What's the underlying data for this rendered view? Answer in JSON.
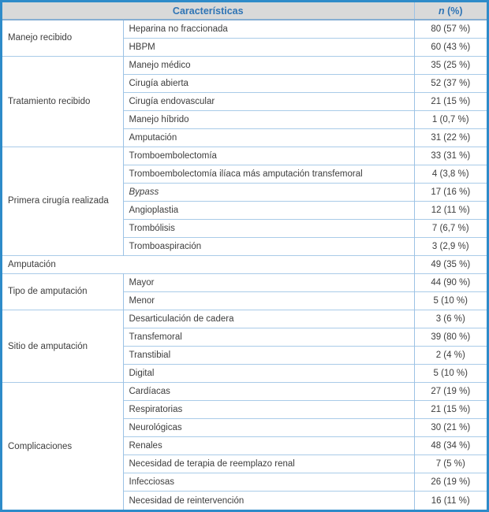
{
  "table": {
    "header": {
      "characteristics_label": "Características",
      "value_header_italic": "n",
      "value_header_rest": " (%)"
    },
    "colors": {
      "outer_border": "#2e8bc9",
      "header_bg": "#d9d9d9",
      "header_text": "#2e74b5",
      "row_divider": "#a9cbe8",
      "section_divider": "#86aed3",
      "body_text": "#3d3d3d"
    },
    "sections": [
      {
        "label": "Manejo recibido",
        "rows": [
          {
            "label": "Heparina no fraccionada",
            "value": "80 (57 %)"
          },
          {
            "label": "HBPM",
            "value": "60 (43 %)"
          }
        ]
      },
      {
        "label": "Tratamiento recibido",
        "rows": [
          {
            "label": "Manejo médico",
            "value": "35 (25 %)"
          },
          {
            "label": "Cirugía abierta",
            "value": "52 (37 %)"
          },
          {
            "label": "Cirugía endovascular",
            "value": "21 (15 %)"
          },
          {
            "label": "Manejo híbrido",
            "value": "1 (0,7 %)"
          },
          {
            "label": "Amputación",
            "value": "31 (22 %)"
          }
        ]
      },
      {
        "label": "Primera cirugía realizada",
        "rows": [
          {
            "label": "Tromboembolectomía",
            "value": "33 (31 %)"
          },
          {
            "label": "Tromboembolectomía ilíaca más amputación transfemoral",
            "value": "4 (3,8 %)"
          },
          {
            "label": "Bypass",
            "italic": true,
            "value": "17 (16 %)"
          },
          {
            "label": "Angioplastia",
            "value": "12 (11 %)"
          },
          {
            "label": "Trombólisis",
            "value": "7 (6,7 %)"
          },
          {
            "label": "Tromboaspiración",
            "value": "3 (2,9 %)"
          }
        ]
      },
      {
        "label": "Amputación",
        "full_width": true,
        "value": "49 (35 %)",
        "rows": []
      },
      {
        "label": "Tipo de amputación",
        "rows": [
          {
            "label": "Mayor",
            "value": "44 (90 %)"
          },
          {
            "label": "Menor",
            "value": "5 (10 %)"
          }
        ]
      },
      {
        "label": "Sitio de amputación",
        "rows": [
          {
            "label": "Desarticulación de cadera",
            "value": "3 (6 %)"
          },
          {
            "label": "Transfemoral",
            "value": "39 (80 %)"
          },
          {
            "label": "Transtibial",
            "value": "2 (4 %)"
          },
          {
            "label": "Digital",
            "value": "5 (10 %)"
          }
        ]
      },
      {
        "label": "Complicaciones",
        "rows": [
          {
            "label": "Cardíacas",
            "value": "27 (19 %)"
          },
          {
            "label": "Respiratorias",
            "value": "21 (15 %)"
          },
          {
            "label": "Neurológicas",
            "value": "30 (21 %)"
          },
          {
            "label": "Renales",
            "value": "48 (34 %)"
          },
          {
            "label": "Necesidad de terapia de reemplazo renal",
            "value": "7 (5 %)"
          },
          {
            "label": "Infecciosas",
            "value": "26 (19 %)"
          },
          {
            "label": "Necesidad de reintervención",
            "value": "16 (11 %)"
          }
        ]
      }
    ]
  }
}
